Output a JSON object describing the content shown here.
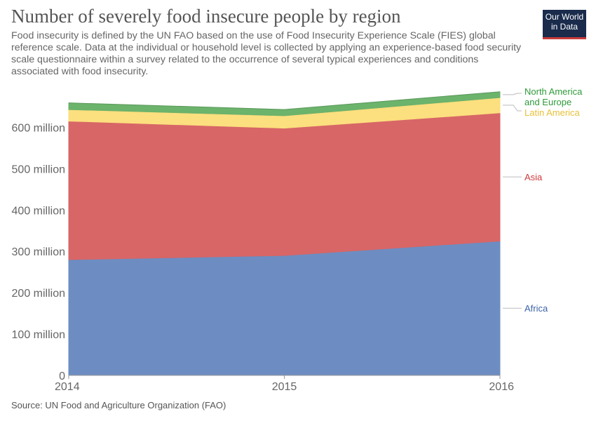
{
  "header": {
    "title": "Number of severely food insecure people by region",
    "subtitle": "Food insecurity is defined by the UN FAO based on the use of Food Insecurity Experience Scale (FIES) global reference scale. Data at the individual or household level is collected by applying an experience-based food security scale questionnaire within a survey related to the occurrence of several typical experiences and conditions associated with food insecurity.",
    "logo_line1": "Our World",
    "logo_line2": "in Data"
  },
  "footer": {
    "source": "Source: UN Food and Agriculture Organization (FAO)"
  },
  "colors": {
    "Africa": "#6d8dc2",
    "Asia": "#d86667",
    "Latin America": "#fcdf7e",
    "North America and Europe": "#6cb36c",
    "Africa_label": "#3d63a8",
    "Asia_label": "#d03a3c",
    "Latin America_label": "#e8c13a",
    "North America and Europe_label": "#2f9a3a"
  },
  "chart_data": {
    "type": "area",
    "stacked": true,
    "x": [
      "2014",
      "2015",
      "2016"
    ],
    "series": [
      {
        "name": "Africa",
        "values": [
          280,
          290,
          325
        ]
      },
      {
        "name": "Asia",
        "values": [
          335,
          308,
          310
        ]
      },
      {
        "name": "Latin America",
        "values": [
          28,
          30,
          37
        ]
      },
      {
        "name": "North America and Europe",
        "values": [
          16,
          15,
          14
        ]
      }
    ],
    "units": "million",
    "y_ticks": [
      "0",
      "100 million",
      "200 million",
      "300 million",
      "400 million",
      "500 million",
      "600 million"
    ],
    "y_tick_values": [
      0,
      100,
      200,
      300,
      400,
      500,
      600
    ],
    "ylim": [
      0,
      680
    ],
    "grid": "horizontal dashed",
    "legend": "right",
    "legend_labels": [
      "North America",
      "and Europe",
      "Latin America",
      "Asia",
      "Africa"
    ]
  }
}
